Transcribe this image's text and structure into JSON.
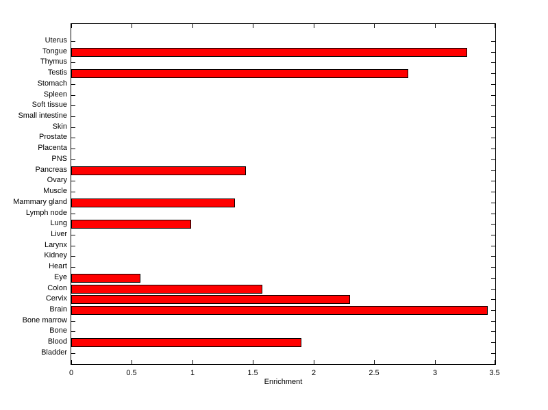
{
  "chart_data": {
    "type": "bar",
    "orientation": "horizontal",
    "title": "",
    "xlabel": "Enrichment",
    "ylabel": "",
    "categories": [
      "Uterus",
      "Tongue",
      "Thymus",
      "Testis",
      "Stomach",
      "Spleen",
      "Soft tissue",
      "Small intestine",
      "Skin",
      "Prostate",
      "Placenta",
      "PNS",
      "Pancreas",
      "Ovary",
      "Muscle",
      "Mammary gland",
      "Lymph node",
      "Lung",
      "Liver",
      "Larynx",
      "Kidney",
      "Heart",
      "Eye",
      "Colon",
      "Cervix",
      "Brain",
      "Bone marrow",
      "Bone",
      "Blood",
      "Bladder"
    ],
    "values": [
      0,
      3.27,
      0,
      2.78,
      0,
      0,
      0,
      0,
      0,
      0,
      0,
      0,
      1.44,
      0,
      0,
      1.35,
      0,
      0.99,
      0,
      0,
      0,
      0,
      0.57,
      1.58,
      2.3,
      3.44,
      0,
      0,
      1.9,
      0
    ],
    "xlim": [
      0,
      3.5
    ],
    "xticks": [
      0,
      0.5,
      1,
      1.5,
      2,
      2.5,
      3,
      3.5
    ],
    "xtick_labels": [
      "0",
      "0.5",
      "1",
      "1.5",
      "2",
      "2.5",
      "3",
      "3.5"
    ],
    "grid": false,
    "legend": null,
    "colors": {
      "bar_fill": "#ff0000",
      "bar_edge": "#000000",
      "axis": "#000000",
      "text": "#000000",
      "background": "#ffffff"
    }
  }
}
